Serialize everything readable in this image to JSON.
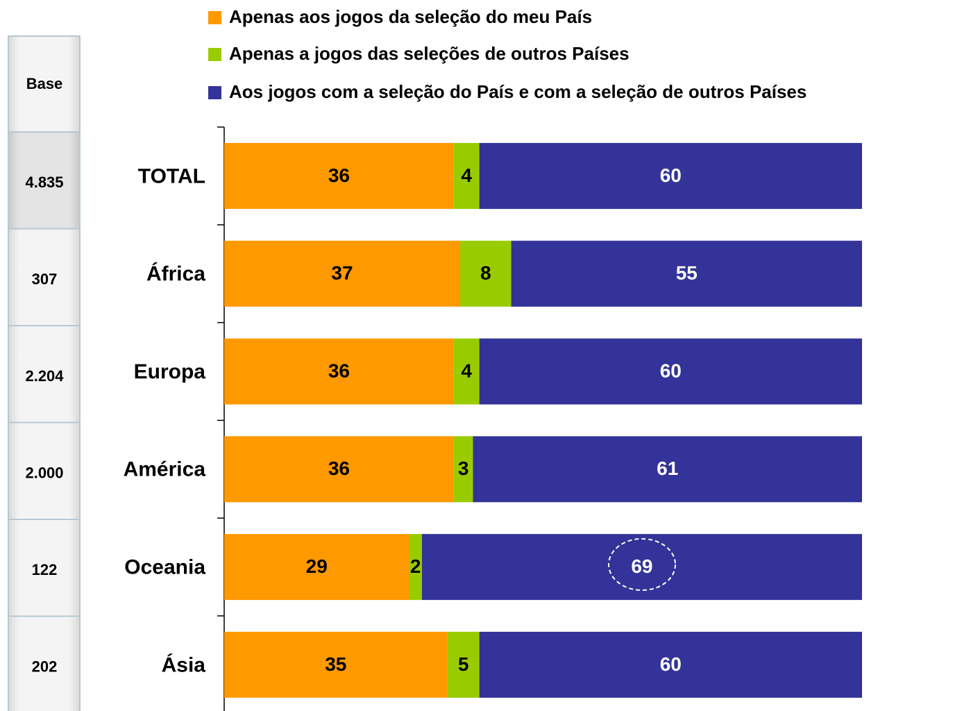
{
  "chart_data": {
    "type": "stacked_bar_horizontal",
    "categories": [
      "TOTAL",
      "África",
      "Europa",
      "América",
      "Oceania",
      "Ásia"
    ],
    "series": [
      {
        "name": "Apenas aos jogos da seleção do meu País",
        "color": "#ff9900",
        "label_color": "#000000",
        "values": [
          36,
          37,
          36,
          36,
          29,
          35
        ]
      },
      {
        "name": "Apenas a jogos das seleções de outros Países",
        "color": "#99cc00",
        "label_color": "#000000",
        "values": [
          4,
          8,
          4,
          3,
          2,
          5
        ]
      },
      {
        "name": "Aos jogos com a seleção do País e com a seleção de outros Países",
        "color": "#333399",
        "label_color": "#ffffff",
        "values": [
          60,
          55,
          60,
          61,
          69,
          60
        ]
      }
    ],
    "xlim": [
      0,
      100
    ],
    "legend": "top",
    "base_label": "Base",
    "base_values": [
      "4.835",
      "307",
      "2.204",
      "2.000",
      "122",
      "202"
    ]
  }
}
